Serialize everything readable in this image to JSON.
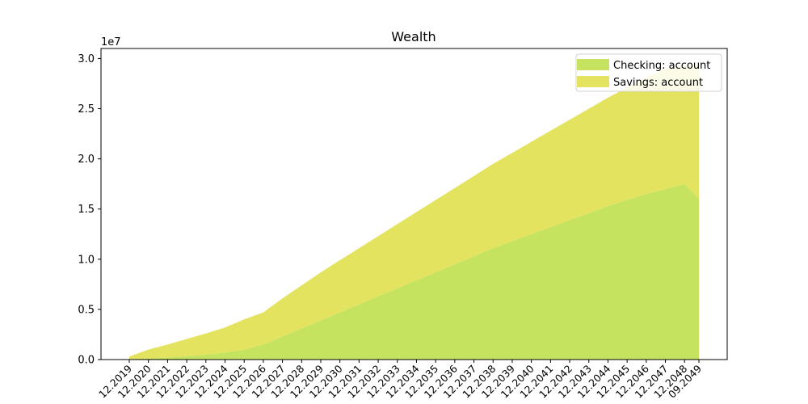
{
  "chart_data": {
    "type": "area",
    "stacked": true,
    "title": "Wealth",
    "xlabel": "",
    "ylabel": "",
    "y_exponent_label": "1e7",
    "ylim": [
      0,
      31000000
    ],
    "yticks": [
      0,
      5000000,
      10000000,
      15000000,
      20000000,
      25000000,
      30000000
    ],
    "ytick_labels": [
      "0.0",
      "0.5",
      "1.0",
      "1.5",
      "2.0",
      "2.5",
      "3.0"
    ],
    "x": [
      "12.2019",
      "12.2020",
      "12.2021",
      "12.2022",
      "12.2023",
      "12.2024",
      "12.2025",
      "12.2026",
      "12.2027",
      "12.2028",
      "12.2029",
      "12.2030",
      "12.2031",
      "12.2032",
      "12.2033",
      "12.2034",
      "12.2035",
      "12.2036",
      "12.2037",
      "12.2038",
      "12.2039",
      "12.2040",
      "12.2041",
      "12.2042",
      "12.2043",
      "12.2044",
      "12.2045",
      "12.2046",
      "12.2047",
      "12.2048",
      "09.2049"
    ],
    "xtick_labels": [
      "12.2019",
      "12.2020",
      "12.2021",
      "12.2022",
      "12.2023",
      "12.2024",
      "12.2025",
      "12.2026",
      "12.2027",
      "12.2028",
      "12.2029",
      "12.2030",
      "12.2031",
      "12.2032",
      "12.2033",
      "12.2034",
      "12.2035",
      "12.2036",
      "12.2037",
      "12.2038",
      "12.2039",
      "12.2040",
      "12.2041",
      "12.2042",
      "12.2043",
      "12.2044",
      "12.2045",
      "12.2046",
      "12.2047",
      "12.2048",
      "09.2049"
    ],
    "x_months": [
      0,
      12,
      24,
      36,
      48,
      60,
      72,
      84,
      96,
      108,
      120,
      132,
      144,
      156,
      168,
      180,
      192,
      204,
      216,
      228,
      240,
      252,
      264,
      276,
      288,
      300,
      312,
      324,
      336,
      348,
      357
    ],
    "series": [
      {
        "name": "Checking: account",
        "color": "#c5e35f",
        "values": [
          50000,
          100000,
          200000,
          350000,
          500000,
          700000,
          1000000,
          1500000,
          2300000,
          3100000,
          3900000,
          4700000,
          5500000,
          6300000,
          7100000,
          7900000,
          8700000,
          9500000,
          10300000,
          11100000,
          11800000,
          12500000,
          13200000,
          13900000,
          14600000,
          15300000,
          15900000,
          16500000,
          17000000,
          17500000,
          16000000
        ]
      },
      {
        "name": "Savings: account",
        "color": "#e4e35f",
        "values": [
          250000,
          900000,
          1300000,
          1700000,
          2100000,
          2500000,
          3000000,
          3200000,
          3800000,
          4300000,
          4800000,
          5200000,
          5600000,
          6000000,
          6400000,
          6800000,
          7200000,
          7600000,
          8000000,
          8400000,
          8800000,
          9200000,
          9600000,
          10000000,
          10400000,
          10800000,
          11200000,
          11600000,
          12000000,
          11800000,
          13300000
        ]
      }
    ],
    "legend_position": "top-right",
    "grid": false
  }
}
